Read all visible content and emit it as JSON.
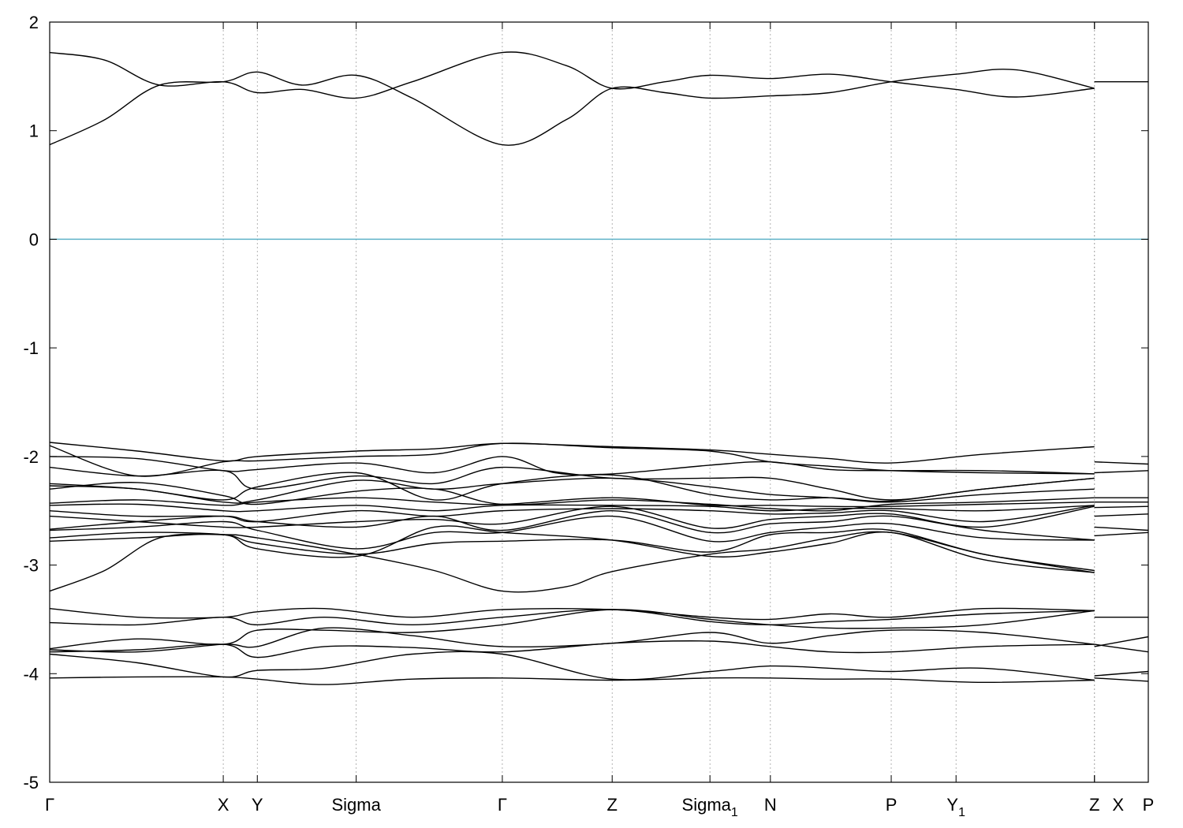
{
  "chart_data": {
    "type": "line",
    "title": "",
    "xlabel": "",
    "ylabel": "",
    "ylim": [
      -5,
      2
    ],
    "xlim": [
      0,
      100
    ],
    "yticks": [
      2,
      1,
      0,
      -1,
      -2,
      -3,
      -4,
      -5
    ],
    "ytick_labels": [
      "2",
      "1",
      "0",
      "-1",
      "-2",
      "-3",
      "-4",
      "-5"
    ],
    "kpoints": [
      {
        "label": "Γ",
        "sub": "",
        "x": 0.0
      },
      {
        "label": "X",
        "sub": "",
        "x": 15.8
      },
      {
        "label": "Y",
        "sub": "",
        "x": 18.9
      },
      {
        "label": "Sigma",
        "sub": "",
        "x": 27.9
      },
      {
        "label": "Γ",
        "sub": "",
        "x": 41.2
      },
      {
        "label": "Z",
        "sub": "",
        "x": 51.2
      },
      {
        "label": "Sigma",
        "sub": "1",
        "x": 60.1
      },
      {
        "label": "N",
        "sub": "",
        "x": 65.6
      },
      {
        "label": "P",
        "sub": "",
        "x": 76.6
      },
      {
        "label": "Y",
        "sub": "1",
        "x": 82.5
      },
      {
        "label": "Z",
        "sub": "",
        "x": 95.1
      },
      {
        "label": "X",
        "sub": "",
        "x": 95.1
      },
      {
        "label": "P",
        "sub": "",
        "x": 100.0
      }
    ],
    "fermi_level": 0,
    "colors": {
      "bands": "#000000",
      "fermi": "#5fb3c8",
      "grid": "#a0a0a0"
    },
    "grid": "vertical dotted at k-points",
    "series": [
      {
        "x": [
          0,
          5,
          10,
          15.8,
          18.9,
          23,
          27.9,
          33,
          41.2,
          47,
          51.2,
          56,
          60.1,
          65.6,
          71,
          76.6,
          82.5,
          88,
          95.1
        ],
        "values": [
          1.72,
          1.65,
          1.42,
          1.45,
          1.35,
          1.38,
          1.3,
          1.45,
          1.72,
          1.6,
          1.39,
          1.45,
          1.51,
          1.48,
          1.52,
          1.45,
          1.38,
          1.31,
          1.39
        ]
      },
      {
        "x": [
          0,
          5,
          10,
          15.8,
          18.9,
          23,
          27.9,
          33,
          41.2,
          47,
          51.2,
          56,
          60.1,
          65.6,
          71,
          76.6,
          82.5,
          88,
          95.1
        ],
        "values": [
          0.87,
          1.1,
          1.42,
          1.45,
          1.54,
          1.42,
          1.51,
          1.3,
          0.87,
          1.1,
          1.39,
          1.35,
          1.3,
          1.32,
          1.35,
          1.45,
          1.52,
          1.56,
          1.39
        ]
      },
      {
        "x": [
          95.1,
          100
        ],
        "values": [
          1.45,
          1.45
        ]
      },
      {
        "x": [
          0,
          8,
          15.8,
          18.9,
          27.9,
          35,
          41.2,
          51.2,
          60.1,
          65.6,
          71,
          76.6,
          85,
          95.1
        ],
        "values": [
          -1.87,
          -1.95,
          -2.04,
          -2.0,
          -1.95,
          -1.93,
          -1.88,
          -1.91,
          -1.94,
          -1.98,
          -2.02,
          -2.06,
          -1.98,
          -1.91
        ]
      },
      {
        "x": [
          0,
          8,
          15.8,
          18.9,
          27.9,
          35,
          41.2,
          51.2,
          60.1,
          65.6,
          71,
          76.6,
          85,
          95.1
        ],
        "values": [
          -1.9,
          -2.18,
          -2.05,
          -2.04,
          -2.0,
          -1.98,
          -1.88,
          -1.92,
          -1.95,
          -2.05,
          -2.09,
          -2.13,
          -2.15,
          -2.16
        ]
      },
      {
        "x": [
          0,
          8,
          15.8,
          18.9,
          27.9,
          35,
          41.2,
          46,
          51.2,
          60.1,
          65.6,
          71,
          76.6,
          85,
          95.1
        ],
        "values": [
          -2.0,
          -2.02,
          -2.13,
          -2.12,
          -2.06,
          -2.15,
          -2.0,
          -2.15,
          -2.16,
          -2.08,
          -2.05,
          -2.12,
          -2.13,
          -2.13,
          -2.16
        ]
      },
      {
        "x": [
          0,
          8,
          15.8,
          18.9,
          27.9,
          35,
          41.2,
          51.2,
          60.1,
          65.6,
          71,
          76.6,
          85,
          95.1
        ],
        "values": [
          -2.1,
          -2.18,
          -2.13,
          -2.3,
          -2.18,
          -2.25,
          -2.1,
          -2.2,
          -2.2,
          -2.2,
          -2.3,
          -2.4,
          -2.3,
          -2.2
        ]
      },
      {
        "x": [
          0,
          8,
          15.8,
          18.9,
          27.9,
          35,
          41.2,
          51.2,
          60.1,
          65.6,
          71,
          76.6,
          85,
          95.1
        ],
        "values": [
          -2.25,
          -2.3,
          -2.4,
          -2.28,
          -2.15,
          -2.4,
          -2.25,
          -2.17,
          -2.35,
          -2.4,
          -2.38,
          -2.41,
          -2.3,
          -2.2
        ]
      },
      {
        "x": [
          0,
          8,
          15.8,
          18.9,
          27.9,
          35,
          41.2,
          51.2,
          60.1,
          65.6,
          71,
          76.6,
          85,
          95.1
        ],
        "values": [
          -2.27,
          -2.3,
          -2.42,
          -2.4,
          -2.22,
          -2.3,
          -2.25,
          -2.2,
          -2.28,
          -2.35,
          -2.38,
          -2.42,
          -2.35,
          -2.3
        ]
      },
      {
        "x": [
          0,
          8,
          15.8,
          18.9,
          27.9,
          35,
          41.2,
          51.2,
          60.1,
          65.6,
          71,
          76.6,
          85,
          95.1
        ],
        "values": [
          -2.3,
          -2.24,
          -2.36,
          -2.44,
          -2.32,
          -2.3,
          -2.44,
          -2.4,
          -2.44,
          -2.48,
          -2.5,
          -2.44,
          -2.42,
          -2.38
        ]
      },
      {
        "x": [
          0,
          8,
          15.8,
          18.9,
          27.9,
          35,
          41.2,
          51.2,
          60.1,
          65.6,
          71,
          76.6,
          85,
          95.1
        ],
        "values": [
          -2.43,
          -2.4,
          -2.45,
          -2.42,
          -2.38,
          -2.42,
          -2.44,
          -2.38,
          -2.45,
          -2.45,
          -2.46,
          -2.46,
          -2.44,
          -2.42
        ]
      },
      {
        "x": [
          0,
          8,
          15.8,
          18.9,
          27.9,
          35,
          41.2,
          51.2,
          60.1,
          65.6,
          71,
          76.6,
          85,
          95.1
        ],
        "values": [
          -2.45,
          -2.44,
          -2.5,
          -2.5,
          -2.45,
          -2.5,
          -2.45,
          -2.45,
          -2.46,
          -2.5,
          -2.48,
          -2.48,
          -2.5,
          -2.45
        ]
      },
      {
        "x": [
          0,
          8,
          15.8,
          18.9,
          27.9,
          35,
          41.2,
          51.2,
          60.1,
          65.6,
          71,
          76.6,
          85,
          95.1
        ],
        "values": [
          -2.5,
          -2.55,
          -2.55,
          -2.6,
          -2.5,
          -2.55,
          -2.5,
          -2.48,
          -2.5,
          -2.53,
          -2.52,
          -2.5,
          -2.6,
          -2.45
        ]
      },
      {
        "x": [
          0,
          8,
          15.8,
          18.9,
          27.9,
          35,
          41.2,
          51.2,
          60.1,
          65.6,
          71,
          76.6,
          85,
          95.1
        ],
        "values": [
          -2.55,
          -2.6,
          -2.65,
          -2.65,
          -2.6,
          -2.58,
          -2.62,
          -2.46,
          -2.66,
          -2.58,
          -2.55,
          -2.53,
          -2.65,
          -2.46
        ]
      },
      {
        "x": [
          0,
          8,
          15.8,
          18.9,
          27.9,
          35,
          41.2,
          51.2,
          60.1,
          65.6,
          71,
          76.6,
          85,
          95.1
        ],
        "values": [
          -2.67,
          -2.6,
          -2.55,
          -2.6,
          -2.65,
          -2.55,
          -2.68,
          -2.5,
          -2.7,
          -2.62,
          -2.6,
          -2.55,
          -2.68,
          -2.77
        ]
      },
      {
        "x": [
          0,
          8,
          15.8,
          18.9,
          27.9,
          35,
          41.2,
          51.2,
          60.1,
          65.6,
          71,
          76.6,
          85,
          95.1
        ],
        "values": [
          -2.68,
          -2.65,
          -2.6,
          -2.68,
          -2.85,
          -2.7,
          -2.7,
          -2.55,
          -2.78,
          -2.7,
          -2.65,
          -2.62,
          -2.75,
          -2.77
        ]
      },
      {
        "x": [
          0,
          8,
          15.8,
          18.9,
          27.9,
          35,
          41.2,
          51.2,
          60.1,
          65.6,
          71,
          76.6,
          85,
          95.1
        ],
        "values": [
          -2.75,
          -2.7,
          -2.72,
          -2.8,
          -2.9,
          -2.8,
          -2.78,
          -2.77,
          -2.88,
          -2.72,
          -2.7,
          -2.68,
          -2.9,
          -3.05
        ]
      },
      {
        "x": [
          0,
          8,
          15.8,
          18.9,
          27.9,
          35,
          41.2,
          51.2,
          60.1,
          65.6,
          71,
          76.6,
          85,
          95.1
        ],
        "values": [
          -2.78,
          -2.75,
          -2.72,
          -2.85,
          -2.92,
          -2.65,
          -2.7,
          -2.77,
          -2.92,
          -2.88,
          -2.8,
          -2.7,
          -2.95,
          -3.07
        ]
      },
      {
        "x": [
          0,
          5,
          10,
          15.8,
          18.9,
          27.9,
          35,
          41.2,
          47,
          51.2,
          60.1,
          65.6,
          71,
          76.6,
          85,
          95.1
        ],
        "values": [
          -3.24,
          -3.05,
          -2.75,
          -2.72,
          -2.75,
          -2.9,
          -3.05,
          -3.24,
          -3.2,
          -3.06,
          -2.9,
          -2.85,
          -2.75,
          -2.7,
          -2.9,
          -3.07
        ]
      },
      {
        "x": [
          95.1,
          100
        ],
        "values": [
          -2.05,
          -2.07
        ]
      },
      {
        "x": [
          95.1,
          100
        ],
        "values": [
          -2.15,
          -2.13
        ]
      },
      {
        "x": [
          95.1,
          100
        ],
        "values": [
          -2.38,
          -2.38
        ]
      },
      {
        "x": [
          95.1,
          100
        ],
        "values": [
          -2.42,
          -2.42
        ]
      },
      {
        "x": [
          95.1,
          100
        ],
        "values": [
          -2.47,
          -2.46
        ]
      },
      {
        "x": [
          95.1,
          100
        ],
        "values": [
          -2.55,
          -2.53
        ]
      },
      {
        "x": [
          95.1,
          100
        ],
        "values": [
          -2.65,
          -2.68
        ]
      },
      {
        "x": [
          95.1,
          100
        ],
        "values": [
          -2.73,
          -2.7
        ]
      },
      {
        "x": [
          0,
          8,
          15.8,
          18.9,
          25,
          33,
          41.2,
          51.2,
          60.1,
          65.6,
          71,
          76.6,
          85,
          95.1
        ],
        "values": [
          -3.4,
          -3.48,
          -3.48,
          -3.43,
          -3.4,
          -3.48,
          -3.41,
          -3.41,
          -3.48,
          -3.5,
          -3.45,
          -3.48,
          -3.4,
          -3.42
        ]
      },
      {
        "x": [
          0,
          8,
          15.8,
          18.9,
          25,
          33,
          41.2,
          51.2,
          60.1,
          65.6,
          71,
          76.6,
          85,
          95.1
        ],
        "values": [
          -3.53,
          -3.55,
          -3.48,
          -3.55,
          -3.48,
          -3.55,
          -3.48,
          -3.41,
          -3.52,
          -3.55,
          -3.52,
          -3.5,
          -3.45,
          -3.42
        ]
      },
      {
        "x": [
          0,
          8,
          15.8,
          18.9,
          25,
          33,
          41.2,
          51.2,
          60.1,
          65.6,
          71,
          76.6,
          85,
          95.1
        ],
        "values": [
          -3.77,
          -3.68,
          -3.73,
          -3.6,
          -3.6,
          -3.62,
          -3.55,
          -3.41,
          -3.5,
          -3.55,
          -3.58,
          -3.58,
          -3.55,
          -3.42
        ]
      },
      {
        "x": [
          0,
          8,
          15.8,
          18.9,
          25,
          33,
          41.2,
          51.2,
          60.1,
          65.6,
          71,
          76.6,
          85,
          95.1
        ],
        "values": [
          -3.78,
          -3.8,
          -3.73,
          -3.75,
          -3.58,
          -3.65,
          -3.75,
          -3.72,
          -3.62,
          -3.72,
          -3.65,
          -3.6,
          -3.62,
          -3.73
        ]
      },
      {
        "x": [
          0,
          8,
          15.8,
          18.9,
          25,
          33,
          41.2,
          51.2,
          60.1,
          65.6,
          71,
          76.6,
          85,
          95.1
        ],
        "values": [
          -3.8,
          -3.78,
          -3.73,
          -3.85,
          -3.75,
          -3.76,
          -3.8,
          -3.72,
          -3.7,
          -3.75,
          -3.8,
          -3.8,
          -3.75,
          -3.73
        ]
      },
      {
        "x": [
          0,
          8,
          15.8,
          18.9,
          25,
          33,
          41.2,
          51.2,
          60.1,
          65.6,
          71,
          76.6,
          85,
          95.1
        ],
        "values": [
          -3.82,
          -3.9,
          -4.03,
          -3.97,
          -3.95,
          -3.82,
          -3.82,
          -4.05,
          -3.98,
          -3.93,
          -3.95,
          -3.98,
          -3.95,
          -4.06
        ]
      },
      {
        "x": [
          0,
          8,
          15.8,
          18.9,
          25,
          33,
          41.2,
          51.2,
          60.1,
          65.6,
          71,
          76.6,
          85,
          95.1
        ],
        "values": [
          -4.04,
          -4.03,
          -4.03,
          -4.05,
          -4.1,
          -4.05,
          -4.04,
          -4.06,
          -4.04,
          -4.04,
          -4.05,
          -4.05,
          -4.08,
          -4.06
        ]
      },
      {
        "x": [
          95.1,
          100
        ],
        "values": [
          -3.48,
          -3.48
        ]
      },
      {
        "x": [
          95.1,
          100
        ],
        "values": [
          -3.75,
          -3.66
        ]
      },
      {
        "x": [
          95.1,
          100
        ],
        "values": [
          -3.73,
          -3.8
        ]
      },
      {
        "x": [
          95.1,
          100
        ],
        "values": [
          -4.02,
          -3.98
        ]
      },
      {
        "x": [
          95.1,
          100
        ],
        "values": [
          -4.04,
          -4.07
        ]
      }
    ]
  }
}
